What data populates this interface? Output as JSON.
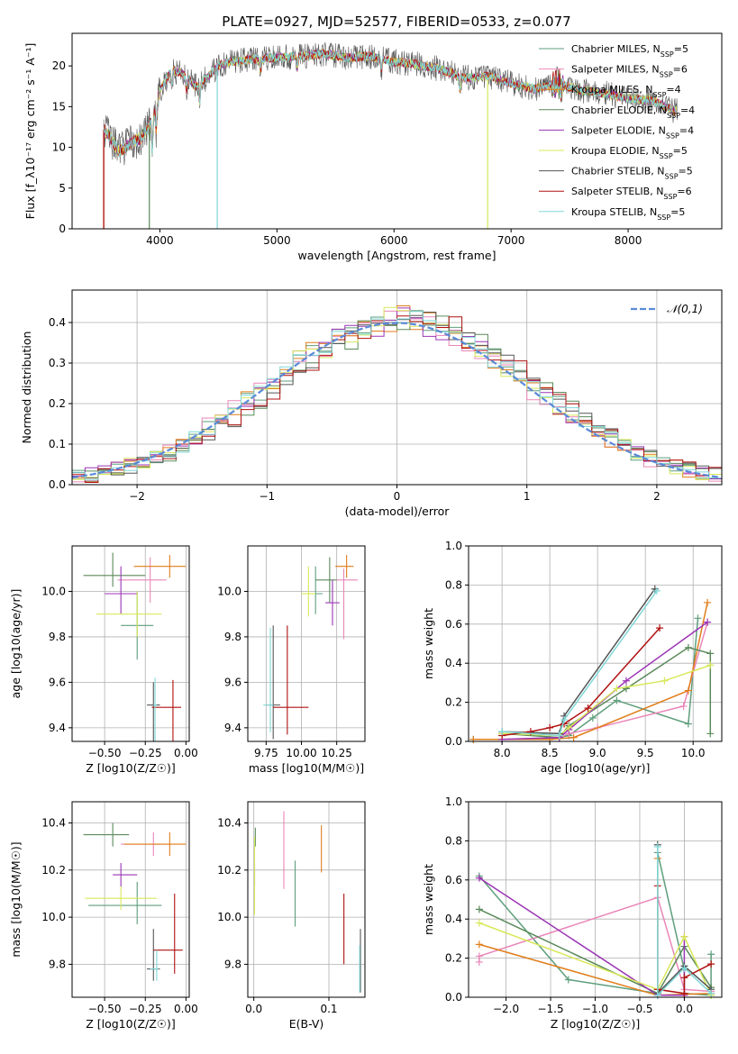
{
  "figure_title": "PLATE=0927, MJD=52577, FIBERID=0533, z=0.077",
  "model_colors": [
    "#5e9e7c",
    "#e986b8",
    "#e07d1b",
    "#5a8a5a",
    "#9c35b5",
    "#d8e85a",
    "#555555",
    "#b01010",
    "#80d8d8"
  ],
  "chart_data": [
    {
      "type": "line",
      "title": "PLATE=0927, MJD=52577, FIBERID=0533, z=0.077",
      "xlabel": "wavelength [Angstrom, rest frame]",
      "ylabel": "Flux [f_λ10⁻¹⁷ erg cm⁻² s⁻¹ A⁻¹]",
      "xlim": [
        3250,
        8800
      ],
      "ylim": [
        0,
        24
      ],
      "xticks": [
        4000,
        5000,
        6000,
        7000,
        8000
      ],
      "yticks": [
        0,
        5,
        10,
        15,
        20
      ],
      "grid": false,
      "legend": "top-right",
      "spectrum_anchors": {
        "x": [
          3520,
          3560,
          3650,
          3750,
          3830,
          3900,
          3950,
          4000,
          4100,
          4200,
          4300,
          4400,
          4500,
          4600,
          4800,
          5000,
          5200,
          5400,
          5600,
          5800,
          6000,
          6200,
          6400,
          6600,
          6800,
          7000,
          7200,
          7400,
          7600,
          7800,
          8000,
          8200,
          8400
        ],
        "y": [
          12.2,
          11.5,
          9.5,
          10.5,
          11.0,
          12.5,
          14.0,
          17.0,
          19.5,
          19.0,
          17.5,
          18.5,
          20.0,
          20.5,
          20.8,
          21.0,
          21.2,
          21.5,
          21.0,
          21.2,
          20.5,
          20.2,
          19.6,
          18.5,
          18.8,
          17.8,
          17.2,
          17.8,
          17.0,
          16.6,
          16.0,
          15.8,
          14.5
        ]
      },
      "series": [
        {
          "name": "Chabrier MILES, N_SSP=5"
        },
        {
          "name": "Salpeter MILES, N_SSP=6"
        },
        {
          "name": "Kroupa MILES, N_SSP=4"
        },
        {
          "name": "Chabrier ELODIE, N_SSP=4"
        },
        {
          "name": "Salpeter ELODIE, N_SSP=4"
        },
        {
          "name": "Kroupa ELODIE, N_SSP=5"
        },
        {
          "name": "Chabrier STELIB, N_SSP=5"
        },
        {
          "name": "Salpeter STELIB, N_SSP=6"
        },
        {
          "name": "Kroupa STELIB, N_SSP=5"
        }
      ]
    },
    {
      "type": "histogram",
      "xlabel": "(data-model)/error",
      "ylabel": "Normed distribution",
      "xlim": [
        -2.5,
        2.5
      ],
      "ylim": [
        0,
        0.48
      ],
      "xticks": [
        -2,
        -1,
        0,
        1,
        2
      ],
      "yticks": [
        0.0,
        0.1,
        0.2,
        0.3,
        0.4
      ],
      "grid": true,
      "legend": "top-right",
      "bin_width": 0.1,
      "reference_curve": {
        "name": "𝒩(0,1)",
        "mean": 0,
        "sigma": 1
      }
    },
    {
      "type": "scatter",
      "xlabel": "Z [log10(Z/Z☉)]",
      "ylabel": "age  [log10(age/yr)]",
      "xlim": [
        -0.7,
        0.02
      ],
      "ylim": [
        9.34,
        10.2
      ],
      "xticks": [
        -0.5,
        -0.25,
        0.0
      ],
      "yticks": [
        9.4,
        9.6,
        9.8,
        10.0
      ],
      "grid": true,
      "points": [
        {
          "x": -0.3,
          "y": 9.85,
          "xerr": [
            0.1,
            0.1
          ],
          "yerr": [
            0.15,
            0.15
          ]
        },
        {
          "x": -0.22,
          "y": 10.05,
          "xerr": [
            0.2,
            0.1
          ],
          "yerr": [
            0.1,
            0.1
          ]
        },
        {
          "x": -0.1,
          "y": 10.11,
          "xerr": [
            0.22,
            0.1
          ],
          "yerr": [
            0.05,
            0.05
          ]
        },
        {
          "x": -0.45,
          "y": 10.07,
          "xerr": [
            0.18,
            0.2
          ],
          "yerr": [
            0.05,
            0.1
          ]
        },
        {
          "x": -0.4,
          "y": 9.99,
          "xerr": [
            0.1,
            0.1
          ],
          "yerr": [
            0.09,
            0.12
          ]
        },
        {
          "x": -0.3,
          "y": 9.9,
          "xerr": [
            0.25,
            0.15
          ],
          "yerr": [
            0.1,
            0.1
          ]
        },
        {
          "x": -0.2,
          "y": 9.5,
          "xerr": [
            0.04,
            0.04
          ],
          "yerr": [
            0.45,
            0.1
          ]
        },
        {
          "x": -0.08,
          "y": 9.49,
          "xerr": [
            0.13,
            0.05
          ],
          "yerr": [
            0.36,
            0.12
          ]
        },
        {
          "x": -0.19,
          "y": 9.5,
          "xerr": [
            0.01,
            0.01
          ],
          "yerr": [
            0.34,
            0.12
          ]
        }
      ]
    },
    {
      "type": "scatter",
      "xlabel": "mass [log10(M/M☉)]",
      "ylabel": "",
      "xlim": [
        9.62,
        10.45
      ],
      "ylim": [
        9.34,
        10.2
      ],
      "xticks": [
        9.75,
        10.0,
        10.25
      ],
      "yticks": [
        9.4,
        9.6,
        9.8,
        10.0
      ],
      "grid": true,
      "points": [
        {
          "x": 10.1,
          "y": 9.99,
          "xerr": [
            0.05,
            0.05
          ],
          "yerr": [
            0.09,
            0.12
          ]
        },
        {
          "x": 10.3,
          "y": 10.05,
          "xerr": [
            0.05,
            0.1
          ],
          "yerr": [
            0.26,
            0.05
          ]
        },
        {
          "x": 10.32,
          "y": 10.11,
          "xerr": [
            0.08,
            0.05
          ],
          "yerr": [
            0.05,
            0.05
          ]
        },
        {
          "x": 10.2,
          "y": 10.05,
          "xerr": [
            0.1,
            0.05
          ],
          "yerr": [
            0.1,
            0.1
          ]
        },
        {
          "x": 10.22,
          "y": 9.95,
          "xerr": [
            0.05,
            0.05
          ],
          "yerr": [
            0.1,
            0.1
          ]
        },
        {
          "x": 10.05,
          "y": 9.99,
          "xerr": [
            0.05,
            0.05
          ],
          "yerr": [
            0.1,
            0.12
          ]
        },
        {
          "x": 9.8,
          "y": 9.5,
          "xerr": [
            0.05,
            0.05
          ],
          "yerr": [
            0.15,
            0.35
          ]
        },
        {
          "x": 9.9,
          "y": 9.49,
          "xerr": [
            0.1,
            0.15
          ],
          "yerr": [
            0.12,
            0.36
          ]
        },
        {
          "x": 9.78,
          "y": 9.5,
          "xerr": [
            0.05,
            0.02
          ],
          "yerr": [
            0.12,
            0.34
          ]
        }
      ]
    },
    {
      "type": "line",
      "xlabel": "age  [log10(age/yr)]",
      "ylabel": "mass weight",
      "xlim": [
        7.65,
        10.3
      ],
      "ylim": [
        0,
        1.0
      ],
      "xticks": [
        8.0,
        8.5,
        9.0,
        9.5,
        10.0
      ],
      "yticks": [
        0.0,
        0.2,
        0.4,
        0.6,
        0.8,
        1.0
      ],
      "grid": true,
      "series": [
        {
          "x": [
            7.7,
            8.5,
            8.7,
            8.95,
            9.2,
            9.95,
            10.05
          ],
          "y": [
            0.01,
            0.01,
            0.03,
            0.12,
            0.21,
            0.09,
            0.63
          ]
        },
        {
          "x": [
            8.0,
            8.6,
            8.7,
            9.0,
            9.9,
            10.15
          ],
          "y": [
            0.01,
            0.02,
            0.04,
            0.07,
            0.18,
            0.61
          ]
        },
        {
          "x": [
            7.7,
            8.5,
            8.75,
            9.95,
            10.15
          ],
          "y": [
            0.01,
            0.01,
            0.02,
            0.26,
            0.71
          ]
        },
        {
          "x": [
            8.0,
            8.6,
            8.7,
            9.3,
            9.95,
            10.18,
            10.18
          ],
          "y": [
            0.04,
            0.02,
            0.08,
            0.27,
            0.48,
            0.45,
            0.04
          ]
        },
        {
          "x": [
            8.0,
            8.6,
            8.7,
            9.3,
            10.15
          ],
          "y": [
            0.01,
            0.02,
            0.06,
            0.31,
            0.61
          ]
        },
        {
          "x": [
            8.0,
            8.6,
            8.7,
            9.2,
            9.7,
            10.18
          ],
          "y": [
            0.04,
            0.03,
            0.07,
            0.27,
            0.31,
            0.39
          ]
        },
        {
          "x": [
            8.0,
            8.6,
            8.65,
            9.6
          ],
          "y": [
            0.05,
            0.04,
            0.13,
            0.78
          ]
        },
        {
          "x": [
            8.0,
            8.3,
            8.5,
            8.65,
            8.9,
            9.65
          ],
          "y": [
            0.03,
            0.05,
            0.07,
            0.09,
            0.17,
            0.58
          ]
        },
        {
          "x": [
            8.0,
            8.6,
            8.65,
            9.62
          ],
          "y": [
            0.05,
            0.03,
            0.11,
            0.77
          ]
        }
      ]
    },
    {
      "type": "scatter",
      "xlabel": "Z [log10(Z/Z☉)]",
      "ylabel": "mass [log10(M/M☉)]",
      "xlim": [
        -0.7,
        0.02
      ],
      "ylim": [
        9.66,
        10.49
      ],
      "xticks": [
        -0.5,
        -0.25,
        0.0
      ],
      "yticks": [
        9.8,
        10.0,
        10.2,
        10.4
      ],
      "grid": true,
      "points": [
        {
          "x": -0.3,
          "y": 10.05,
          "xerr": [
            0.3,
            0.15
          ],
          "yerr": [
            0.08,
            0.1
          ]
        },
        {
          "x": -0.2,
          "y": 10.31,
          "xerr": [
            0.2,
            0.1
          ],
          "yerr": [
            0.05,
            0.05
          ]
        },
        {
          "x": -0.1,
          "y": 10.31,
          "xerr": [
            0.28,
            0.1
          ],
          "yerr": [
            0.05,
            0.05
          ]
        },
        {
          "x": -0.45,
          "y": 10.35,
          "xerr": [
            0.18,
            0.1
          ],
          "yerr": [
            0.05,
            0.05
          ]
        },
        {
          "x": -0.4,
          "y": 10.18,
          "xerr": [
            0.05,
            0.1
          ],
          "yerr": [
            0.05,
            0.05
          ]
        },
        {
          "x": -0.4,
          "y": 10.08,
          "xerr": [
            0.22,
            0.22
          ],
          "yerr": [
            0.05,
            0.05
          ]
        },
        {
          "x": -0.2,
          "y": 9.78,
          "xerr": [
            0.04,
            0.04
          ],
          "yerr": [
            0.05,
            0.17
          ]
        },
        {
          "x": -0.07,
          "y": 9.86,
          "xerr": [
            0.13,
            0.05
          ],
          "yerr": [
            0.1,
            0.24
          ]
        },
        {
          "x": -0.18,
          "y": 9.78,
          "xerr": [
            0.04,
            0.01
          ],
          "yerr": [
            0.05,
            0.08
          ]
        }
      ]
    },
    {
      "type": "scatter",
      "xlabel": "E(B-V)",
      "ylabel": "",
      "xlim": [
        -0.008,
        0.148
      ],
      "ylim": [
        9.66,
        10.49
      ],
      "xticks": [
        0.0,
        0.1
      ],
      "yticks": [
        9.8,
        10.0,
        10.2,
        10.4
      ],
      "grid": true,
      "points": [
        {
          "x": 0.055,
          "y": 10.05,
          "xerr": [
            0,
            0
          ],
          "yerr": [
            0.09,
            0.19
          ]
        },
        {
          "x": 0.04,
          "y": 10.29,
          "xerr": [
            0,
            0
          ],
          "yerr": [
            0.17,
            0.16
          ]
        },
        {
          "x": 0.09,
          "y": 10.29,
          "xerr": [
            0,
            0
          ],
          "yerr": [
            0.1,
            0.1
          ]
        },
        {
          "x": 0.002,
          "y": 10.35,
          "xerr": [
            0,
            0
          ],
          "yerr": [
            0.05,
            0.03
          ]
        },
        {
          "x": 0.001,
          "y": 10.18,
          "xerr": [
            0,
            0
          ],
          "yerr": [
            0.05,
            0.05
          ]
        },
        {
          "x": 0.001,
          "y": 10.18,
          "xerr": [
            0,
            0
          ],
          "yerr": [
            0.17,
            0.16
          ]
        },
        {
          "x": 0.142,
          "y": 9.8,
          "xerr": [
            0,
            0
          ],
          "yerr": [
            0.12,
            0.15
          ]
        },
        {
          "x": 0.12,
          "y": 9.95,
          "xerr": [
            0,
            0
          ],
          "yerr": [
            0.15,
            0.15
          ]
        },
        {
          "x": 0.141,
          "y": 9.76,
          "xerr": [
            0,
            0
          ],
          "yerr": [
            0.08,
            0.12
          ]
        }
      ]
    },
    {
      "type": "line",
      "xlabel": "Z [log10(Z/Z☉)]",
      "ylabel": "mass weight",
      "xlim": [
        -2.42,
        0.42
      ],
      "ylim": [
        0,
        1.0
      ],
      "xticks": [
        -2.0,
        -1.5,
        -1.0,
        -0.5,
        0.0
      ],
      "yticks": [
        0.0,
        0.2,
        0.4,
        0.6,
        0.8,
        1.0
      ],
      "grid": true,
      "series": [
        {
          "x": [
            -2.3,
            -1.3,
            -0.3,
            -0.3,
            0.0,
            0.0,
            0.3,
            0.3
          ],
          "y": [
            0.62,
            0.09,
            0.02,
            0.74,
            0.14,
            0.02,
            0.01,
            0.22
          ]
        },
        {
          "x": [
            -2.3,
            -2.3,
            -0.3,
            0.0,
            0.3
          ],
          "y": [
            0.18,
            0.21,
            0.51,
            0.04,
            0.03
          ]
        },
        {
          "x": [
            -2.3,
            -0.3,
            -0.3,
            -0.3,
            0.3
          ],
          "y": [
            0.27,
            0.01,
            0.71,
            0.01,
            0.02
          ]
        },
        {
          "x": [
            -2.3,
            -0.3,
            0.0,
            0.3
          ],
          "y": [
            0.45,
            0.02,
            0.26,
            0.05
          ]
        },
        {
          "x": [
            -2.3,
            -0.3,
            0.0,
            0.0
          ],
          "y": [
            0.61,
            0.01,
            0.01,
            0.31
          ]
        },
        {
          "x": [
            -2.3,
            -0.3,
            0.0,
            0.3
          ],
          "y": [
            0.38,
            0.04,
            0.31,
            0.01
          ]
        },
        {
          "x": [
            -0.3,
            -0.3,
            0.0,
            0.3
          ],
          "y": [
            0.78,
            0.02,
            0.16,
            0.04
          ]
        },
        {
          "x": [
            -0.3,
            -0.3,
            0.0,
            0.0,
            0.3
          ],
          "y": [
            0.57,
            0.04,
            0.02,
            0.1,
            0.17
          ]
        },
        {
          "x": [
            -0.3,
            -0.3,
            0.0,
            0.3
          ],
          "y": [
            0.77,
            0.01,
            0.15,
            0.02
          ]
        }
      ]
    }
  ]
}
